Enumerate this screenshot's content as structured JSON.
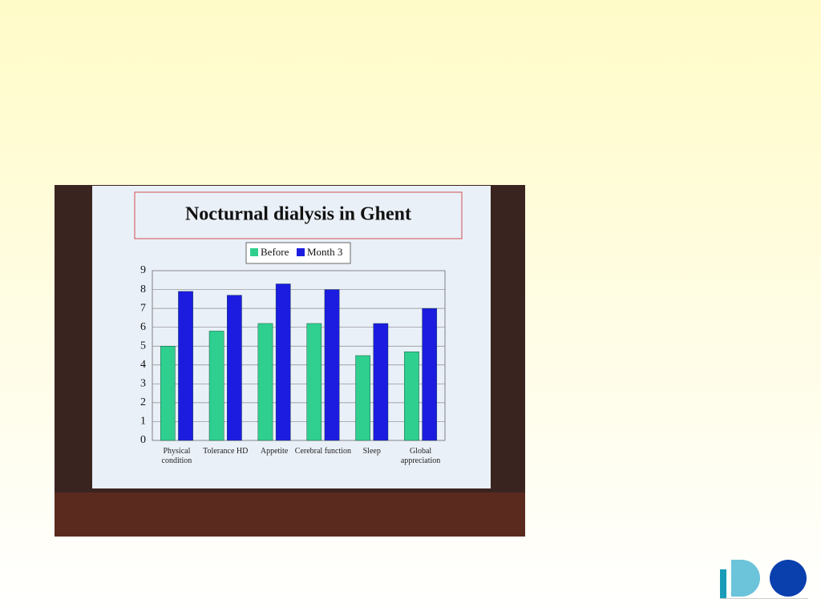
{
  "chart_data": {
    "type": "bar",
    "title": "Nocturnal dialysis in Ghent",
    "categories": [
      "Physical condition",
      "Tolerance HD",
      "Appetite",
      "Cerebral function",
      "Sleep",
      "Global appreciation"
    ],
    "series": [
      {
        "name": "Before",
        "color": "#2fcf8f",
        "values": [
          5.0,
          5.8,
          6.2,
          6.2,
          4.5,
          4.7
        ]
      },
      {
        "name": "Month 3",
        "color": "#1c1ce0",
        "values": [
          7.9,
          7.7,
          8.3,
          8.0,
          6.2,
          7.0
        ]
      }
    ],
    "ylim": [
      0,
      9
    ],
    "yticks": [
      0,
      1,
      2,
      3,
      4,
      5,
      6,
      7,
      8,
      9
    ],
    "grid": true
  }
}
